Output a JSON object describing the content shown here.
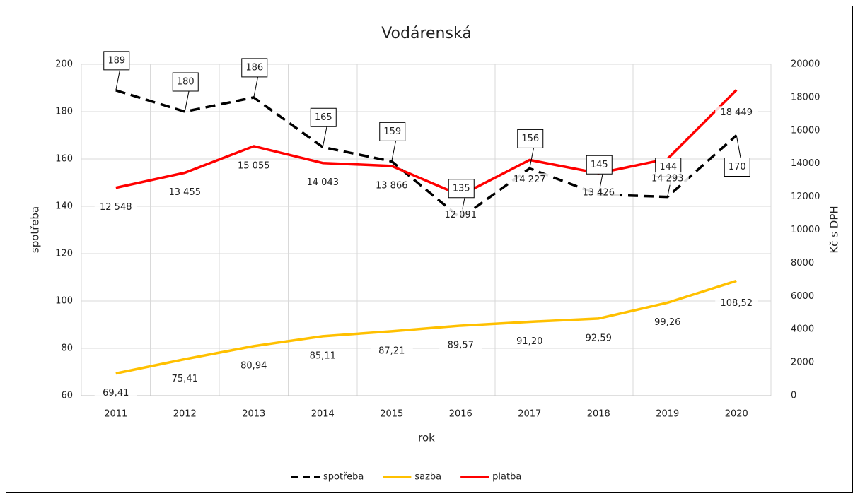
{
  "chart_data": {
    "type": "line",
    "title": "Vodárenská",
    "x_label": "rok",
    "y_label": "spotřeba",
    "y2_label": "Kč s DPH",
    "categories": [
      "2011",
      "2012",
      "2013",
      "2014",
      "2015",
      "2016",
      "2017",
      "2018",
      "2019",
      "2020"
    ],
    "ylim": [
      60,
      200
    ],
    "yticks": [
      60,
      80,
      100,
      120,
      140,
      160,
      180,
      200
    ],
    "y2lim": [
      0,
      20000
    ],
    "y2ticks": [
      0,
      2000,
      4000,
      6000,
      8000,
      10000,
      12000,
      14000,
      16000,
      18000,
      20000
    ],
    "grid": true,
    "legend": "bottom",
    "series": [
      {
        "name": "spotřeba",
        "color": "#000000",
        "dash": true,
        "values": [
          189,
          180,
          186,
          165,
          159,
          135,
          156,
          145,
          144,
          170
        ]
      },
      {
        "name": "sazba",
        "color": "#FFC000",
        "values": [
          69.41,
          75.41,
          80.94,
          85.11,
          87.21,
          89.57,
          91.2,
          92.59,
          99.26,
          108.52
        ],
        "value_labels": [
          "69,41",
          "75,41",
          "80,94",
          "85,11",
          "87,21",
          "89,57",
          "91,20",
          "92,59",
          "99,26",
          "108,52"
        ]
      },
      {
        "name": "platba",
        "color": "#FF0000",
        "axis": "y2",
        "values": [
          12548,
          13455,
          15055,
          14043,
          13866,
          12091,
          14227,
          13426,
          14293,
          18449
        ],
        "value_labels": [
          "12 548",
          "13 455",
          "15 055",
          "14 043",
          "13 866",
          "12 091",
          "14 227",
          "13 426",
          "14 293",
          "18 449"
        ]
      }
    ]
  }
}
